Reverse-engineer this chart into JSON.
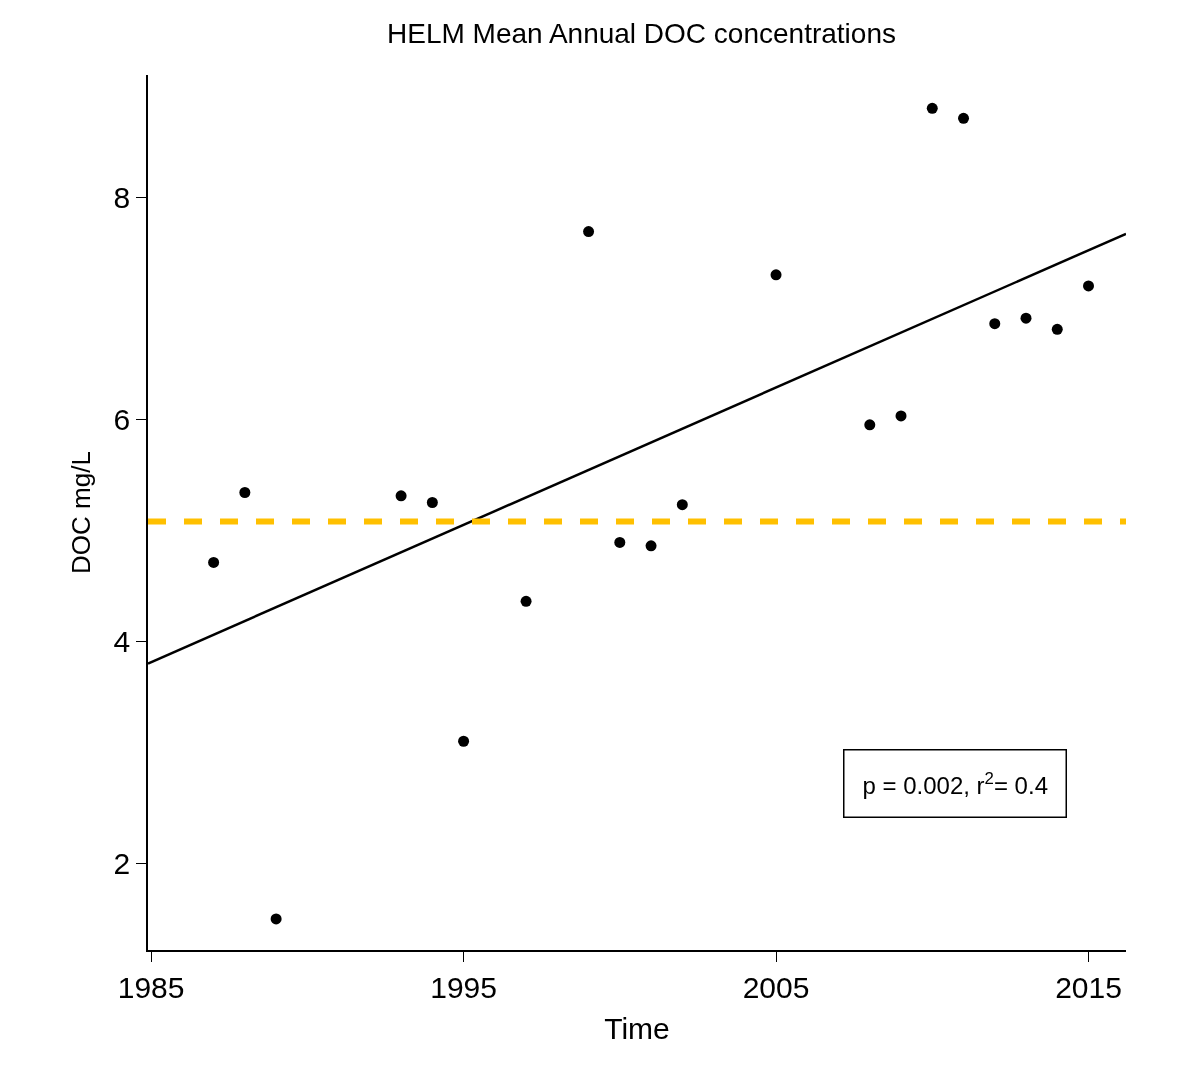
{
  "chart_data": {
    "type": "scatter",
    "title": "HELM Mean Annual DOC concentrations",
    "xlabel": "Time",
    "ylabel": "DOC mg/L",
    "x": [
      1987,
      1988,
      1989,
      1993,
      1994,
      1995,
      1997,
      1999,
      2000,
      2001,
      2002,
      2005,
      2008,
      2009,
      2010,
      2011,
      2012,
      2013,
      2014,
      2015
    ],
    "series": [
      {
        "color": "#000000",
        "values": [
          4.71,
          5.34,
          1.5,
          5.31,
          5.25,
          3.1,
          4.36,
          7.69,
          4.89,
          4.86,
          5.23,
          7.3,
          5.95,
          6.03,
          8.8,
          8.71,
          6.86,
          6.91,
          6.81,
          7.2
        ]
      },
      {
        "type": "line",
        "color": "#000000",
        "x": [
          1984.9,
          2016.2
        ],
        "values": [
          3.8,
          7.67
        ],
        "marker": "none",
        "line_style": "solid"
      }
    ],
    "marker": "circle",
    "ref_lines": [
      {
        "axis": "y",
        "value": 5.08,
        "color": "#ffc000",
        "line_style": "dashed"
      }
    ],
    "annotations": [
      "p = 0.002, r$^{2}$= 0.4"
    ],
    "xlim": [
      1984.9,
      2016.2
    ],
    "ylim": [
      1.22,
      9.1
    ],
    "xticks": [
      1985,
      1995,
      2005,
      2015
    ],
    "yticks": [
      2,
      4,
      6,
      8
    ]
  }
}
